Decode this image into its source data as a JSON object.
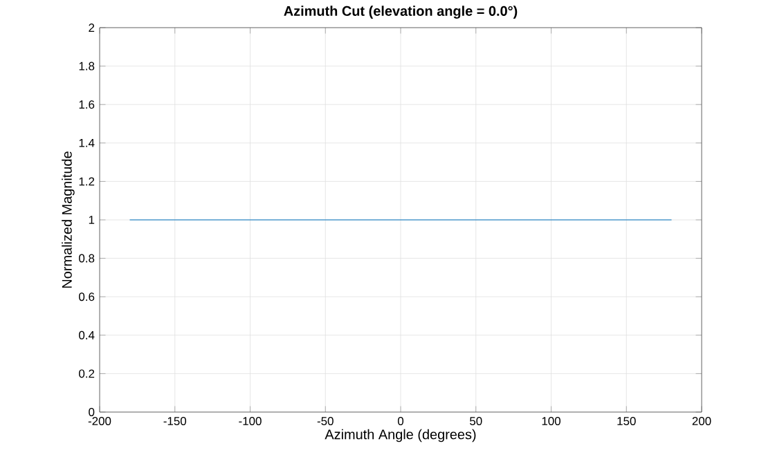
{
  "chart_data": {
    "type": "line",
    "title": "Azimuth Cut (elevation angle = 0.0°)",
    "xlabel": "Azimuth Angle (degrees)",
    "ylabel": "Normalized Magnitude",
    "x": [
      -180,
      180
    ],
    "series": [
      {
        "color": "#0072bd",
        "values": [
          1,
          1
        ]
      }
    ],
    "xlim": [
      -200,
      200
    ],
    "xticks": [
      -200,
      -150,
      -100,
      -50,
      0,
      50,
      100,
      150,
      200
    ],
    "ylim": [
      0,
      2
    ],
    "yticks": [
      0,
      0.2,
      0.4,
      0.6,
      0.8,
      1,
      1.2,
      1.4,
      1.6,
      1.8,
      2
    ],
    "grid": true,
    "marker": "none",
    "line_style": "solid"
  }
}
